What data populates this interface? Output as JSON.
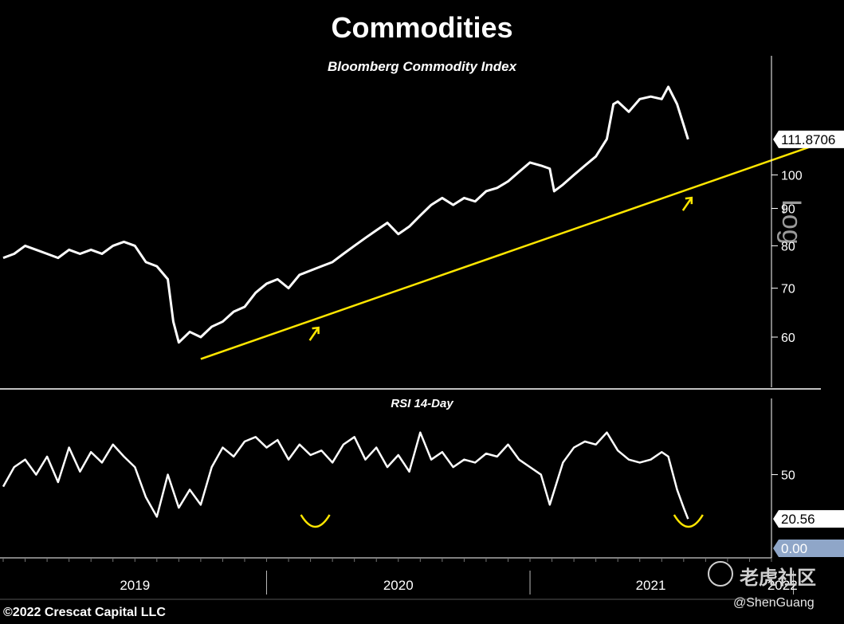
{
  "chart_data": [
    {
      "type": "line",
      "title": "Commodities",
      "subtitle": "Bloomberg Commodity Index",
      "scale": "log",
      "scale_label": "Log",
      "ylim": [
        52,
        135
      ],
      "yticks": [
        60,
        70,
        80,
        90,
        100
      ],
      "last_value": 111.8706,
      "last_value_label": "111.8706",
      "trendline": {
        "start": {
          "x": "2019-10",
          "y": 56
        },
        "end": {
          "x": "2022-06",
          "y": 121
        },
        "color": "#ffe600"
      },
      "annotations": [
        {
          "type": "arrow-up",
          "x": "2020-03"
        },
        {
          "type": "arrow-up",
          "x": "2021-08"
        },
        {
          "type": "arrow-up",
          "x": "2022-06"
        }
      ],
      "series": [
        {
          "values": [
            [
              0.0,
              77
            ],
            [
              0.5,
              78
            ],
            [
              1.0,
              80
            ],
            [
              1.5,
              79
            ],
            [
              2.0,
              78
            ],
            [
              2.5,
              77
            ],
            [
              3.0,
              79
            ],
            [
              3.5,
              78
            ],
            [
              4.0,
              79
            ],
            [
              4.5,
              78
            ],
            [
              5.0,
              80
            ],
            [
              5.5,
              81
            ],
            [
              6.0,
              80
            ],
            [
              6.5,
              76
            ],
            [
              7.0,
              75
            ],
            [
              7.5,
              72
            ],
            [
              7.75,
              63
            ],
            [
              8.0,
              59
            ],
            [
              8.5,
              61
            ],
            [
              9.0,
              60
            ],
            [
              9.5,
              62
            ],
            [
              10.0,
              63
            ],
            [
              10.5,
              65
            ],
            [
              11.0,
              66
            ],
            [
              11.5,
              69
            ],
            [
              12.0,
              71
            ],
            [
              12.5,
              72
            ],
            [
              13.0,
              70
            ],
            [
              13.5,
              73
            ],
            [
              14.0,
              74
            ],
            [
              14.5,
              75
            ],
            [
              15.0,
              76
            ],
            [
              15.5,
              78
            ],
            [
              16.0,
              80
            ],
            [
              16.5,
              82
            ],
            [
              17.0,
              84
            ],
            [
              17.5,
              86
            ],
            [
              18.0,
              83
            ],
            [
              18.5,
              85
            ],
            [
              19.0,
              88
            ],
            [
              19.5,
              91
            ],
            [
              20.0,
              93
            ],
            [
              20.5,
              91
            ],
            [
              21.0,
              93
            ],
            [
              21.5,
              92
            ],
            [
              22.0,
              95
            ],
            [
              22.5,
              96
            ],
            [
              23.0,
              98
            ],
            [
              23.5,
              101
            ],
            [
              24.0,
              104
            ],
            [
              24.5,
              103
            ],
            [
              24.9,
              102
            ],
            [
              25.1,
              95
            ],
            [
              25.5,
              97
            ],
            [
              26.0,
              100
            ],
            [
              26.5,
              103
            ],
            [
              27.0,
              106
            ],
            [
              27.5,
              112
            ],
            [
              27.8,
              125
            ],
            [
              28.0,
              126
            ],
            [
              28.5,
              122
            ],
            [
              29.0,
              127
            ],
            [
              29.5,
              128
            ],
            [
              30.0,
              127
            ],
            [
              30.3,
              132
            ],
            [
              30.7,
              125
            ],
            [
              31.0,
              117
            ],
            [
              31.2,
              111.8706
            ]
          ]
        }
      ]
    },
    {
      "type": "line",
      "title": "RSI 14-Day",
      "ylim": [
        0,
        90
      ],
      "yticks": [
        50
      ],
      "last_value": 20.56,
      "last_value_label": "20.56",
      "floor_value": 0.0,
      "floor_value_label": "0.00",
      "annotations": [
        {
          "type": "trough",
          "x": "2020-03"
        },
        {
          "type": "trough",
          "x": "2021-08"
        },
        {
          "type": "trough",
          "x": "2022-06"
        }
      ],
      "series": [
        {
          "values": [
            [
              0.0,
              42
            ],
            [
              0.5,
              55
            ],
            [
              1.0,
              60
            ],
            [
              1.5,
              50
            ],
            [
              2.0,
              62
            ],
            [
              2.5,
              45
            ],
            [
              3.0,
              68
            ],
            [
              3.5,
              52
            ],
            [
              4.0,
              65
            ],
            [
              4.5,
              58
            ],
            [
              5.0,
              70
            ],
            [
              5.5,
              62
            ],
            [
              6.0,
              55
            ],
            [
              6.5,
              35
            ],
            [
              7.0,
              22
            ],
            [
              7.5,
              50
            ],
            [
              8.0,
              28
            ],
            [
              8.5,
              40
            ],
            [
              9.0,
              30
            ],
            [
              9.5,
              55
            ],
            [
              10.0,
              68
            ],
            [
              10.5,
              62
            ],
            [
              11.0,
              72
            ],
            [
              11.5,
              75
            ],
            [
              12.0,
              68
            ],
            [
              12.5,
              73
            ],
            [
              13.0,
              60
            ],
            [
              13.5,
              70
            ],
            [
              14.0,
              63
            ],
            [
              14.5,
              66
            ],
            [
              15.0,
              58
            ],
            [
              15.5,
              70
            ],
            [
              16.0,
              75
            ],
            [
              16.5,
              60
            ],
            [
              17.0,
              68
            ],
            [
              17.5,
              55
            ],
            [
              18.0,
              63
            ],
            [
              18.5,
              52
            ],
            [
              19.0,
              78
            ],
            [
              19.5,
              60
            ],
            [
              20.0,
              65
            ],
            [
              20.5,
              55
            ],
            [
              21.0,
              60
            ],
            [
              21.5,
              58
            ],
            [
              22.0,
              64
            ],
            [
              22.5,
              62
            ],
            [
              23.0,
              70
            ],
            [
              23.5,
              60
            ],
            [
              24.0,
              55
            ],
            [
              24.5,
              50
            ],
            [
              24.9,
              30
            ],
            [
              25.5,
              58
            ],
            [
              26.0,
              68
            ],
            [
              26.5,
              72
            ],
            [
              27.0,
              70
            ],
            [
              27.5,
              78
            ],
            [
              28.0,
              66
            ],
            [
              28.5,
              60
            ],
            [
              29.0,
              58
            ],
            [
              29.5,
              60
            ],
            [
              30.0,
              65
            ],
            [
              30.3,
              62
            ],
            [
              30.7,
              40
            ],
            [
              31.0,
              28
            ],
            [
              31.2,
              20.56
            ]
          ]
        }
      ]
    }
  ],
  "x_axis": {
    "labels": [
      "2019",
      "2020",
      "2021",
      "2022"
    ]
  },
  "footer": {
    "copyright": "©2022 Crescat Capital LLC",
    "watermark": "老虎社区",
    "handle": "@ShenGuang"
  },
  "colors": {
    "background": "#000000",
    "line": "#ffffff",
    "trendline": "#ffe600",
    "annotation": "#ffe600",
    "floor_tag": "#8fa6c8"
  }
}
